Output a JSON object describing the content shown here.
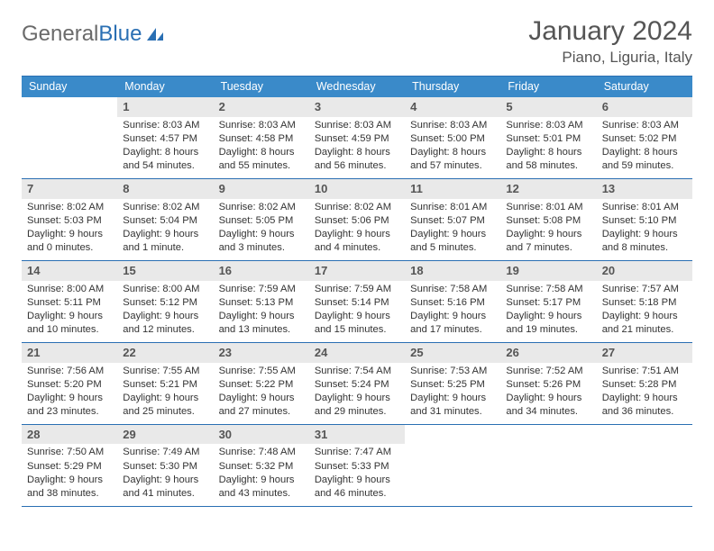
{
  "logo": {
    "text_gray": "General",
    "text_blue": "Blue"
  },
  "header": {
    "title": "January 2024",
    "location": "Piano, Liguria, Italy"
  },
  "colors": {
    "header_bar": "#3a8ac9",
    "rule": "#2a6fb3",
    "daynum_bg": "#e9e9e9",
    "text": "#333333",
    "title": "#555555"
  },
  "weekdays": [
    "Sunday",
    "Monday",
    "Tuesday",
    "Wednesday",
    "Thursday",
    "Friday",
    "Saturday"
  ],
  "weeks": [
    [
      {
        "n": "",
        "sr": "",
        "ss": "",
        "dl1": "",
        "dl2": ""
      },
      {
        "n": "1",
        "sr": "Sunrise: 8:03 AM",
        "ss": "Sunset: 4:57 PM",
        "dl1": "Daylight: 8 hours",
        "dl2": "and 54 minutes."
      },
      {
        "n": "2",
        "sr": "Sunrise: 8:03 AM",
        "ss": "Sunset: 4:58 PM",
        "dl1": "Daylight: 8 hours",
        "dl2": "and 55 minutes."
      },
      {
        "n": "3",
        "sr": "Sunrise: 8:03 AM",
        "ss": "Sunset: 4:59 PM",
        "dl1": "Daylight: 8 hours",
        "dl2": "and 56 minutes."
      },
      {
        "n": "4",
        "sr": "Sunrise: 8:03 AM",
        "ss": "Sunset: 5:00 PM",
        "dl1": "Daylight: 8 hours",
        "dl2": "and 57 minutes."
      },
      {
        "n": "5",
        "sr": "Sunrise: 8:03 AM",
        "ss": "Sunset: 5:01 PM",
        "dl1": "Daylight: 8 hours",
        "dl2": "and 58 minutes."
      },
      {
        "n": "6",
        "sr": "Sunrise: 8:03 AM",
        "ss": "Sunset: 5:02 PM",
        "dl1": "Daylight: 8 hours",
        "dl2": "and 59 minutes."
      }
    ],
    [
      {
        "n": "7",
        "sr": "Sunrise: 8:02 AM",
        "ss": "Sunset: 5:03 PM",
        "dl1": "Daylight: 9 hours",
        "dl2": "and 0 minutes."
      },
      {
        "n": "8",
        "sr": "Sunrise: 8:02 AM",
        "ss": "Sunset: 5:04 PM",
        "dl1": "Daylight: 9 hours",
        "dl2": "and 1 minute."
      },
      {
        "n": "9",
        "sr": "Sunrise: 8:02 AM",
        "ss": "Sunset: 5:05 PM",
        "dl1": "Daylight: 9 hours",
        "dl2": "and 3 minutes."
      },
      {
        "n": "10",
        "sr": "Sunrise: 8:02 AM",
        "ss": "Sunset: 5:06 PM",
        "dl1": "Daylight: 9 hours",
        "dl2": "and 4 minutes."
      },
      {
        "n": "11",
        "sr": "Sunrise: 8:01 AM",
        "ss": "Sunset: 5:07 PM",
        "dl1": "Daylight: 9 hours",
        "dl2": "and 5 minutes."
      },
      {
        "n": "12",
        "sr": "Sunrise: 8:01 AM",
        "ss": "Sunset: 5:08 PM",
        "dl1": "Daylight: 9 hours",
        "dl2": "and 7 minutes."
      },
      {
        "n": "13",
        "sr": "Sunrise: 8:01 AM",
        "ss": "Sunset: 5:10 PM",
        "dl1": "Daylight: 9 hours",
        "dl2": "and 8 minutes."
      }
    ],
    [
      {
        "n": "14",
        "sr": "Sunrise: 8:00 AM",
        "ss": "Sunset: 5:11 PM",
        "dl1": "Daylight: 9 hours",
        "dl2": "and 10 minutes."
      },
      {
        "n": "15",
        "sr": "Sunrise: 8:00 AM",
        "ss": "Sunset: 5:12 PM",
        "dl1": "Daylight: 9 hours",
        "dl2": "and 12 minutes."
      },
      {
        "n": "16",
        "sr": "Sunrise: 7:59 AM",
        "ss": "Sunset: 5:13 PM",
        "dl1": "Daylight: 9 hours",
        "dl2": "and 13 minutes."
      },
      {
        "n": "17",
        "sr": "Sunrise: 7:59 AM",
        "ss": "Sunset: 5:14 PM",
        "dl1": "Daylight: 9 hours",
        "dl2": "and 15 minutes."
      },
      {
        "n": "18",
        "sr": "Sunrise: 7:58 AM",
        "ss": "Sunset: 5:16 PM",
        "dl1": "Daylight: 9 hours",
        "dl2": "and 17 minutes."
      },
      {
        "n": "19",
        "sr": "Sunrise: 7:58 AM",
        "ss": "Sunset: 5:17 PM",
        "dl1": "Daylight: 9 hours",
        "dl2": "and 19 minutes."
      },
      {
        "n": "20",
        "sr": "Sunrise: 7:57 AM",
        "ss": "Sunset: 5:18 PM",
        "dl1": "Daylight: 9 hours",
        "dl2": "and 21 minutes."
      }
    ],
    [
      {
        "n": "21",
        "sr": "Sunrise: 7:56 AM",
        "ss": "Sunset: 5:20 PM",
        "dl1": "Daylight: 9 hours",
        "dl2": "and 23 minutes."
      },
      {
        "n": "22",
        "sr": "Sunrise: 7:55 AM",
        "ss": "Sunset: 5:21 PM",
        "dl1": "Daylight: 9 hours",
        "dl2": "and 25 minutes."
      },
      {
        "n": "23",
        "sr": "Sunrise: 7:55 AM",
        "ss": "Sunset: 5:22 PM",
        "dl1": "Daylight: 9 hours",
        "dl2": "and 27 minutes."
      },
      {
        "n": "24",
        "sr": "Sunrise: 7:54 AM",
        "ss": "Sunset: 5:24 PM",
        "dl1": "Daylight: 9 hours",
        "dl2": "and 29 minutes."
      },
      {
        "n": "25",
        "sr": "Sunrise: 7:53 AM",
        "ss": "Sunset: 5:25 PM",
        "dl1": "Daylight: 9 hours",
        "dl2": "and 31 minutes."
      },
      {
        "n": "26",
        "sr": "Sunrise: 7:52 AM",
        "ss": "Sunset: 5:26 PM",
        "dl1": "Daylight: 9 hours",
        "dl2": "and 34 minutes."
      },
      {
        "n": "27",
        "sr": "Sunrise: 7:51 AM",
        "ss": "Sunset: 5:28 PM",
        "dl1": "Daylight: 9 hours",
        "dl2": "and 36 minutes."
      }
    ],
    [
      {
        "n": "28",
        "sr": "Sunrise: 7:50 AM",
        "ss": "Sunset: 5:29 PM",
        "dl1": "Daylight: 9 hours",
        "dl2": "and 38 minutes."
      },
      {
        "n": "29",
        "sr": "Sunrise: 7:49 AM",
        "ss": "Sunset: 5:30 PM",
        "dl1": "Daylight: 9 hours",
        "dl2": "and 41 minutes."
      },
      {
        "n": "30",
        "sr": "Sunrise: 7:48 AM",
        "ss": "Sunset: 5:32 PM",
        "dl1": "Daylight: 9 hours",
        "dl2": "and 43 minutes."
      },
      {
        "n": "31",
        "sr": "Sunrise: 7:47 AM",
        "ss": "Sunset: 5:33 PM",
        "dl1": "Daylight: 9 hours",
        "dl2": "and 46 minutes."
      },
      {
        "n": "",
        "sr": "",
        "ss": "",
        "dl1": "",
        "dl2": ""
      },
      {
        "n": "",
        "sr": "",
        "ss": "",
        "dl1": "",
        "dl2": ""
      },
      {
        "n": "",
        "sr": "",
        "ss": "",
        "dl1": "",
        "dl2": ""
      }
    ]
  ]
}
